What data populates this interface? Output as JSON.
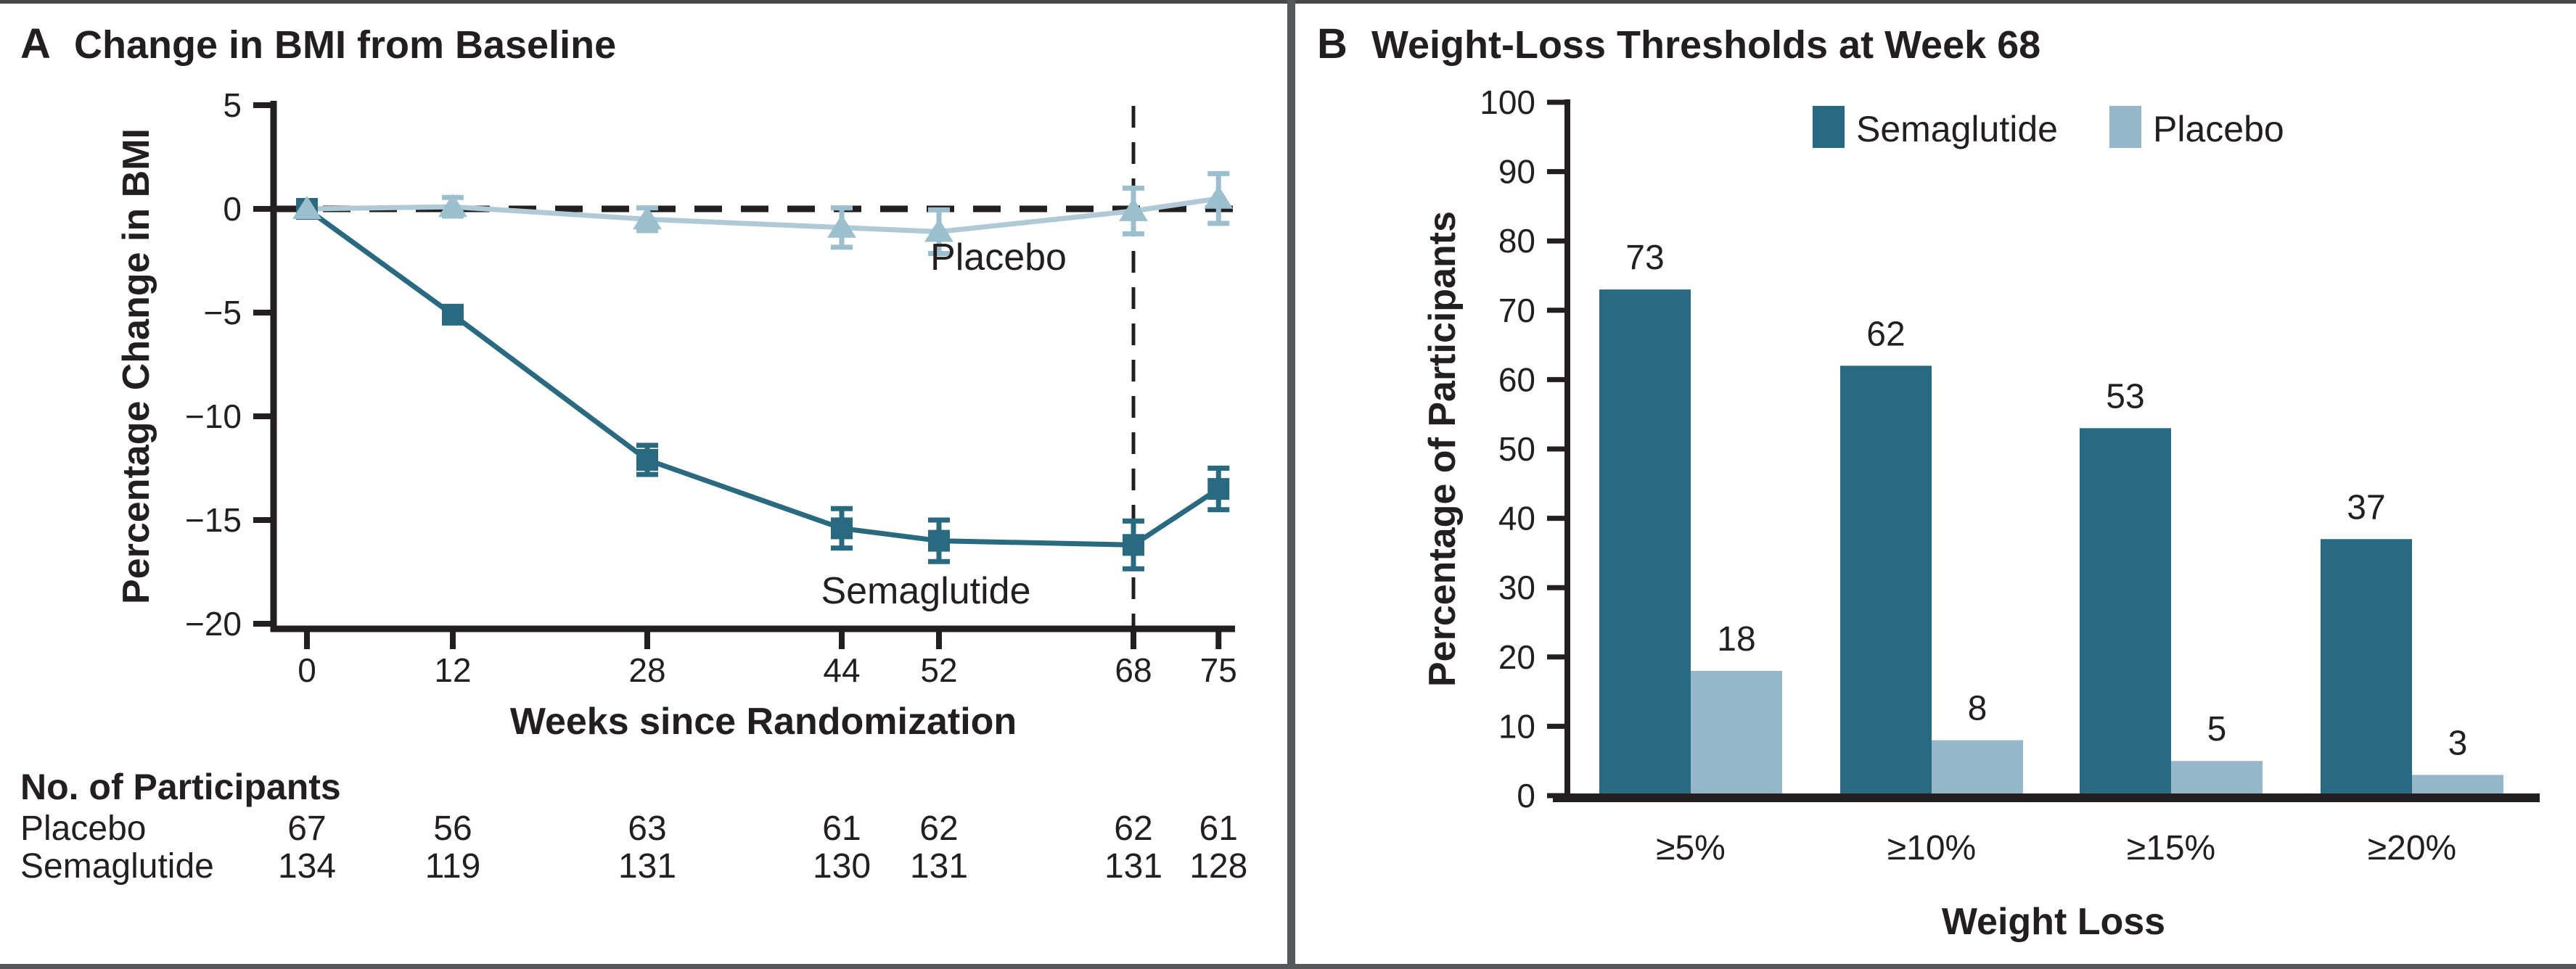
{
  "colors": {
    "semaglutide": "#2A6A80",
    "placebo_fill": "#96B7C9",
    "placebo_marker": "#9CBFCE",
    "placebo_line": "#B0C9D6",
    "axis": "#231F20",
    "text": "#231F20",
    "frame": "#56575B"
  },
  "figure": {
    "panel_a": {
      "label": "A",
      "title": "Change in BMI from Baseline",
      "y_axis_label": "Percentage Change in BMI",
      "x_axis_label": "Weeks since Randomization",
      "annotation_placebo": "Placebo",
      "annotation_semaglutide": "Semaglutide",
      "table": {
        "header": "No. of Participants",
        "rows": [
          {
            "label": "Placebo",
            "values": [
              67,
              56,
              63,
              61,
              62,
              62,
              61
            ]
          },
          {
            "label": "Semaglutide",
            "values": [
              134,
              119,
              131,
              130,
              131,
              131,
              128
            ]
          }
        ]
      }
    },
    "panel_b": {
      "label": "B",
      "title": "Weight-Loss Thresholds at Week 68",
      "y_axis_label": "Percentage of Participants",
      "x_axis_label": "Weight Loss"
    }
  },
  "chart_data": [
    {
      "type": "line",
      "title": "Change in BMI from Baseline",
      "xlabel": "Weeks since Randomization",
      "ylabel": "Percentage Change in BMI",
      "x": [
        0,
        12,
        28,
        44,
        52,
        68,
        75
      ],
      "ylim": [
        -20,
        5
      ],
      "yticks": [
        5,
        0,
        -5,
        -10,
        -15,
        -20
      ],
      "grid": false,
      "reference_lines": {
        "horizontal_y": 0,
        "vertical_x": 68
      },
      "series": [
        {
          "name": "Semaglutide",
          "marker": "square",
          "values": [
            0,
            -5.1,
            -12.1,
            -15.4,
            -16.0,
            -16.2,
            -13.5
          ],
          "errors": [
            0.2,
            0.3,
            0.7,
            0.95,
            1.0,
            1.15,
            1.0
          ]
        },
        {
          "name": "Placebo",
          "marker": "triangle",
          "values": [
            0,
            0.1,
            -0.5,
            -0.9,
            -1.1,
            -0.1,
            0.5
          ],
          "errors": [
            0.3,
            0.45,
            0.55,
            0.95,
            1.05,
            1.1,
            1.2
          ]
        }
      ]
    },
    {
      "type": "bar",
      "title": "Weight-Loss Thresholds at Week 68",
      "xlabel": "Weight Loss",
      "ylabel": "Percentage of Participants",
      "categories": [
        "≥5%",
        "≥10%",
        "≥15%",
        "≥20%"
      ],
      "ylim": [
        0,
        100
      ],
      "yticks": [
        100,
        90,
        80,
        70,
        60,
        50,
        40,
        30,
        20,
        10,
        0
      ],
      "legend_position": "top-center",
      "series": [
        {
          "name": "Semaglutide",
          "values": [
            73,
            62,
            53,
            37
          ]
        },
        {
          "name": "Placebo",
          "values": [
            18,
            8,
            5,
            3
          ]
        }
      ]
    }
  ]
}
